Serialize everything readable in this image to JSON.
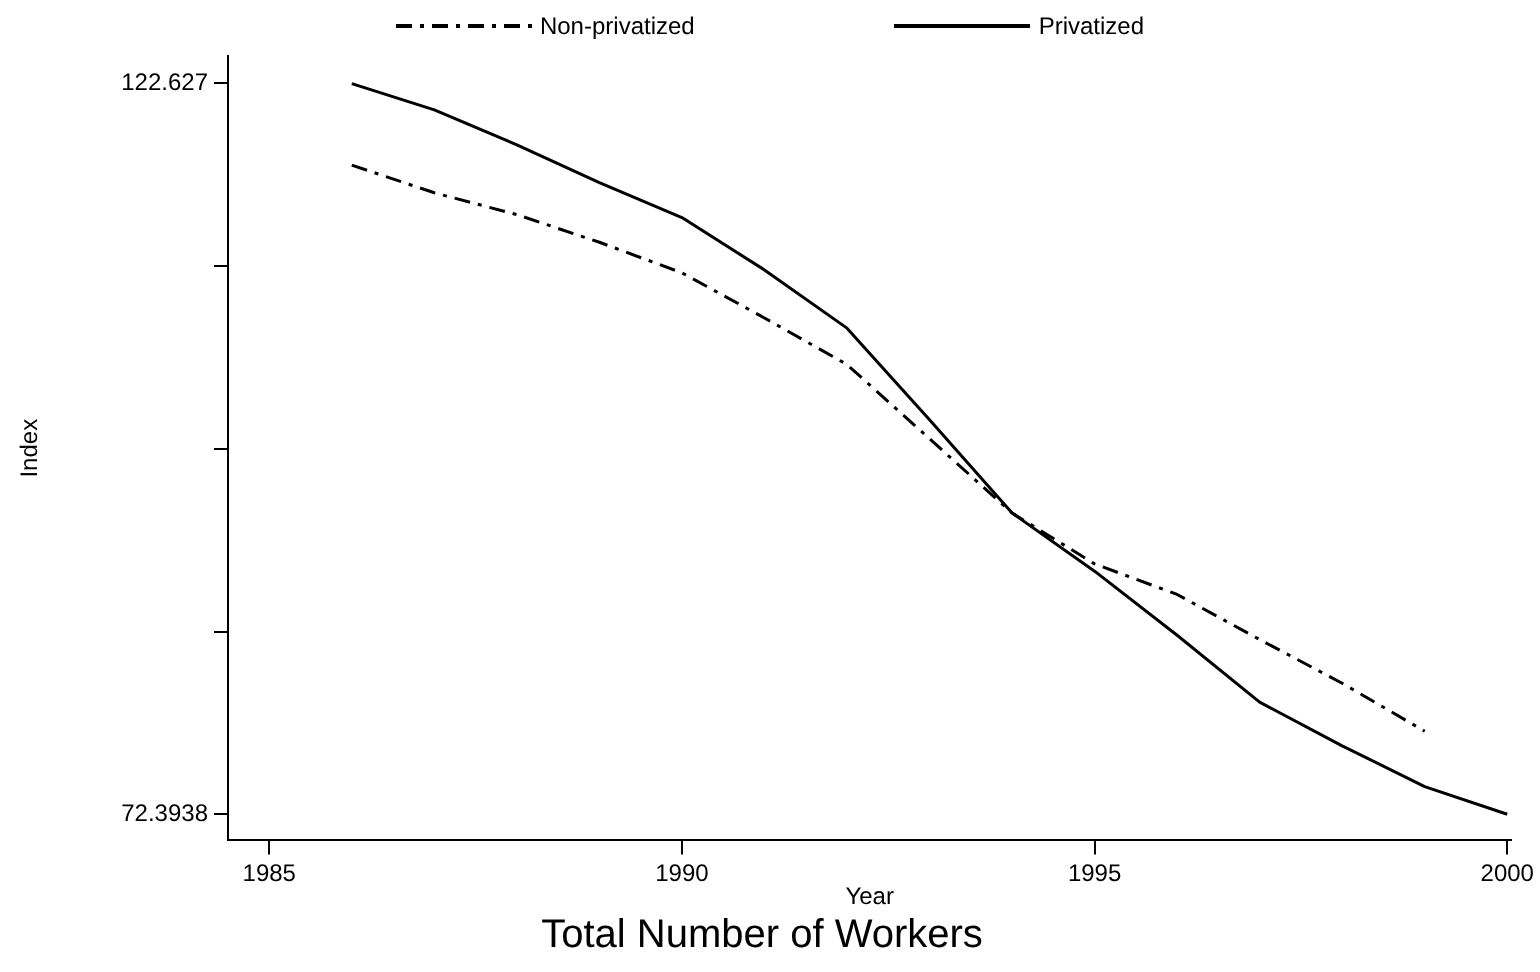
{
  "chart_data": {
    "type": "line",
    "title": "Total Number of Workers",
    "xlabel": "Year",
    "ylabel": "Index",
    "x": [
      1986,
      1987,
      1988,
      1989,
      1990,
      1991,
      1992,
      1993,
      1994,
      1995,
      1996,
      1997,
      1998,
      1999,
      2000
    ],
    "series": [
      {
        "name": "Non-privatized",
        "color": "#000000",
        "line_style": "dashed",
        "values": [
          117.0,
          115.1,
          113.6,
          111.7,
          109.6,
          106.5,
          103.3,
          98.2,
          93.1,
          89.6,
          87.5,
          84.4,
          81.4,
          78.1,
          null
        ]
      },
      {
        "name": "Privatized",
        "color": "#000000",
        "line_style": "solid",
        "values": [
          122.6,
          120.8,
          118.4,
          115.8,
          113.4,
          109.8,
          105.8,
          99.5,
          93.1,
          89.1,
          84.7,
          80.1,
          77.1,
          74.3,
          72.4
        ]
      }
    ],
    "xlim": [
      1984.5,
      2000.05
    ],
    "xticks": [
      1985,
      1990,
      1995,
      2000
    ],
    "ylim": [
      70.6,
      124.5
    ],
    "yticks": [
      72.3938,
      {
        "value": 84.9521,
        "label": null
      },
      {
        "value": 97.5104,
        "label": null
      },
      {
        "value": 110.0687,
        "label": null
      },
      122.627
    ],
    "grid": false,
    "legend": "top",
    "marker": "none"
  }
}
